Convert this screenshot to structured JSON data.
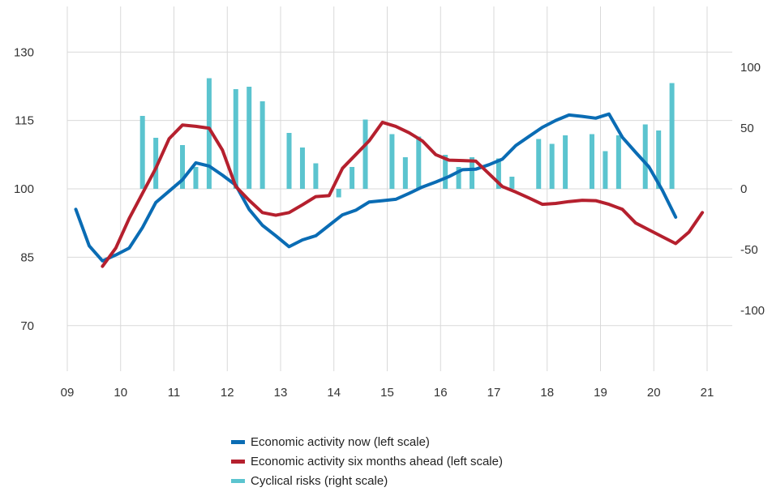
{
  "chart_data": {
    "type": "bar+line",
    "x_ticks": [
      "09",
      "10",
      "11",
      "12",
      "13",
      "14",
      "15",
      "16",
      "17",
      "18",
      "19",
      "20",
      "21"
    ],
    "left_axis": {
      "ticks": [
        70,
        85,
        100,
        115,
        130
      ],
      "range": [
        60,
        140
      ]
    },
    "right_axis": {
      "ticks": [
        -100,
        -50,
        0,
        50,
        100
      ],
      "range": [
        -150,
        150
      ]
    },
    "colors": {
      "activity_now": "#0a6cb4",
      "activity_ahead": "#b5202e",
      "cyclical_risks": "#5bc4cf",
      "grid": "#d9d9d9"
    },
    "series": [
      {
        "name": "Economic activity now (left scale)",
        "axis": "left",
        "type": "line",
        "points": [
          [
            2009.16,
            95.5
          ],
          [
            2009.41,
            87.5
          ],
          [
            2009.66,
            84.2
          ],
          [
            2009.91,
            85.5
          ],
          [
            2010.16,
            87.0
          ],
          [
            2010.41,
            91.5
          ],
          [
            2010.66,
            97.0
          ],
          [
            2010.91,
            99.5
          ],
          [
            2011.16,
            102.0
          ],
          [
            2011.41,
            105.7
          ],
          [
            2011.66,
            105.0
          ],
          [
            2011.91,
            103.0
          ],
          [
            2012.16,
            100.8
          ],
          [
            2012.41,
            95.5
          ],
          [
            2012.66,
            92.0
          ],
          [
            2012.91,
            89.7
          ],
          [
            2013.16,
            87.3
          ],
          [
            2013.41,
            88.8
          ],
          [
            2013.66,
            89.7
          ],
          [
            2013.91,
            92.0
          ],
          [
            2014.16,
            94.3
          ],
          [
            2014.41,
            95.3
          ],
          [
            2014.66,
            97.1
          ],
          [
            2014.91,
            97.4
          ],
          [
            2015.16,
            97.7
          ],
          [
            2015.41,
            99.0
          ],
          [
            2015.66,
            100.4
          ],
          [
            2015.91,
            101.5
          ],
          [
            2016.16,
            102.7
          ],
          [
            2016.41,
            104.2
          ],
          [
            2016.66,
            104.3
          ],
          [
            2016.91,
            105.3
          ],
          [
            2017.16,
            106.5
          ],
          [
            2017.41,
            109.5
          ],
          [
            2017.66,
            111.5
          ],
          [
            2017.91,
            113.5
          ],
          [
            2018.16,
            115.0
          ],
          [
            2018.41,
            116.2
          ],
          [
            2018.66,
            115.9
          ],
          [
            2018.91,
            115.5
          ],
          [
            2019.16,
            116.4
          ],
          [
            2019.41,
            111.3
          ],
          [
            2019.66,
            108.0
          ],
          [
            2019.91,
            104.8
          ],
          [
            2020.16,
            99.7
          ],
          [
            2020.41,
            93.8
          ]
        ]
      },
      {
        "name": "Economic activity six months ahead (left scale)",
        "axis": "left",
        "type": "line",
        "points": [
          [
            2009.66,
            83.0
          ],
          [
            2009.91,
            87.0
          ],
          [
            2010.16,
            93.5
          ],
          [
            2010.41,
            99.0
          ],
          [
            2010.66,
            104.5
          ],
          [
            2010.91,
            111.0
          ],
          [
            2011.16,
            114.0
          ],
          [
            2011.41,
            113.7
          ],
          [
            2011.66,
            113.3
          ],
          [
            2011.91,
            108.5
          ],
          [
            2012.16,
            100.5
          ],
          [
            2012.41,
            97.5
          ],
          [
            2012.66,
            94.8
          ],
          [
            2012.91,
            94.2
          ],
          [
            2013.16,
            94.8
          ],
          [
            2013.41,
            96.5
          ],
          [
            2013.66,
            98.3
          ],
          [
            2013.91,
            98.5
          ],
          [
            2014.16,
            104.5
          ],
          [
            2014.41,
            107.5
          ],
          [
            2014.66,
            110.5
          ],
          [
            2014.91,
            114.6
          ],
          [
            2015.16,
            113.7
          ],
          [
            2015.41,
            112.3
          ],
          [
            2015.66,
            110.5
          ],
          [
            2015.91,
            107.5
          ],
          [
            2016.16,
            106.3
          ],
          [
            2016.41,
            106.2
          ],
          [
            2016.66,
            106.1
          ],
          [
            2016.91,
            103.3
          ],
          [
            2017.16,
            100.5
          ],
          [
            2017.41,
            99.3
          ],
          [
            2017.66,
            98.0
          ],
          [
            2017.91,
            96.6
          ],
          [
            2018.16,
            96.8
          ],
          [
            2018.41,
            97.2
          ],
          [
            2018.66,
            97.5
          ],
          [
            2018.91,
            97.4
          ],
          [
            2019.16,
            96.6
          ],
          [
            2019.41,
            95.5
          ],
          [
            2019.66,
            92.5
          ],
          [
            2019.91,
            91.0
          ],
          [
            2020.16,
            89.5
          ],
          [
            2020.41,
            88.0
          ],
          [
            2020.66,
            90.5
          ],
          [
            2020.91,
            94.8
          ]
        ]
      },
      {
        "name": "Cyclical risks (right scale)",
        "axis": "right",
        "type": "bar",
        "points": [
          [
            2010.41,
            60
          ],
          [
            2010.66,
            42
          ],
          [
            2011.16,
            36
          ],
          [
            2011.41,
            18
          ],
          [
            2011.66,
            91
          ],
          [
            2012.16,
            82
          ],
          [
            2012.41,
            84
          ],
          [
            2012.66,
            72
          ],
          [
            2013.16,
            46
          ],
          [
            2013.41,
            34
          ],
          [
            2013.66,
            21
          ],
          [
            2014.09,
            -7
          ],
          [
            2014.34,
            18
          ],
          [
            2014.59,
            57
          ],
          [
            2015.09,
            45
          ],
          [
            2015.34,
            26
          ],
          [
            2015.59,
            43
          ],
          [
            2016.09,
            28
          ],
          [
            2016.34,
            18
          ],
          [
            2016.59,
            26
          ],
          [
            2017.09,
            25
          ],
          [
            2017.34,
            10
          ],
          [
            2017.84,
            41
          ],
          [
            2018.09,
            37
          ],
          [
            2018.34,
            44
          ],
          [
            2018.84,
            45
          ],
          [
            2019.09,
            31
          ],
          [
            2019.34,
            44
          ],
          [
            2019.84,
            53
          ],
          [
            2020.09,
            48
          ],
          [
            2020.34,
            87
          ]
        ]
      }
    ]
  },
  "legend": [
    {
      "label": "Economic activity now (left scale)",
      "color": "#0a6cb4"
    },
    {
      "label": "Economic activity six months ahead (left scale)",
      "color": "#b5202e"
    },
    {
      "label": "Cyclical risks (right scale)",
      "color": "#5bc4cf"
    }
  ]
}
